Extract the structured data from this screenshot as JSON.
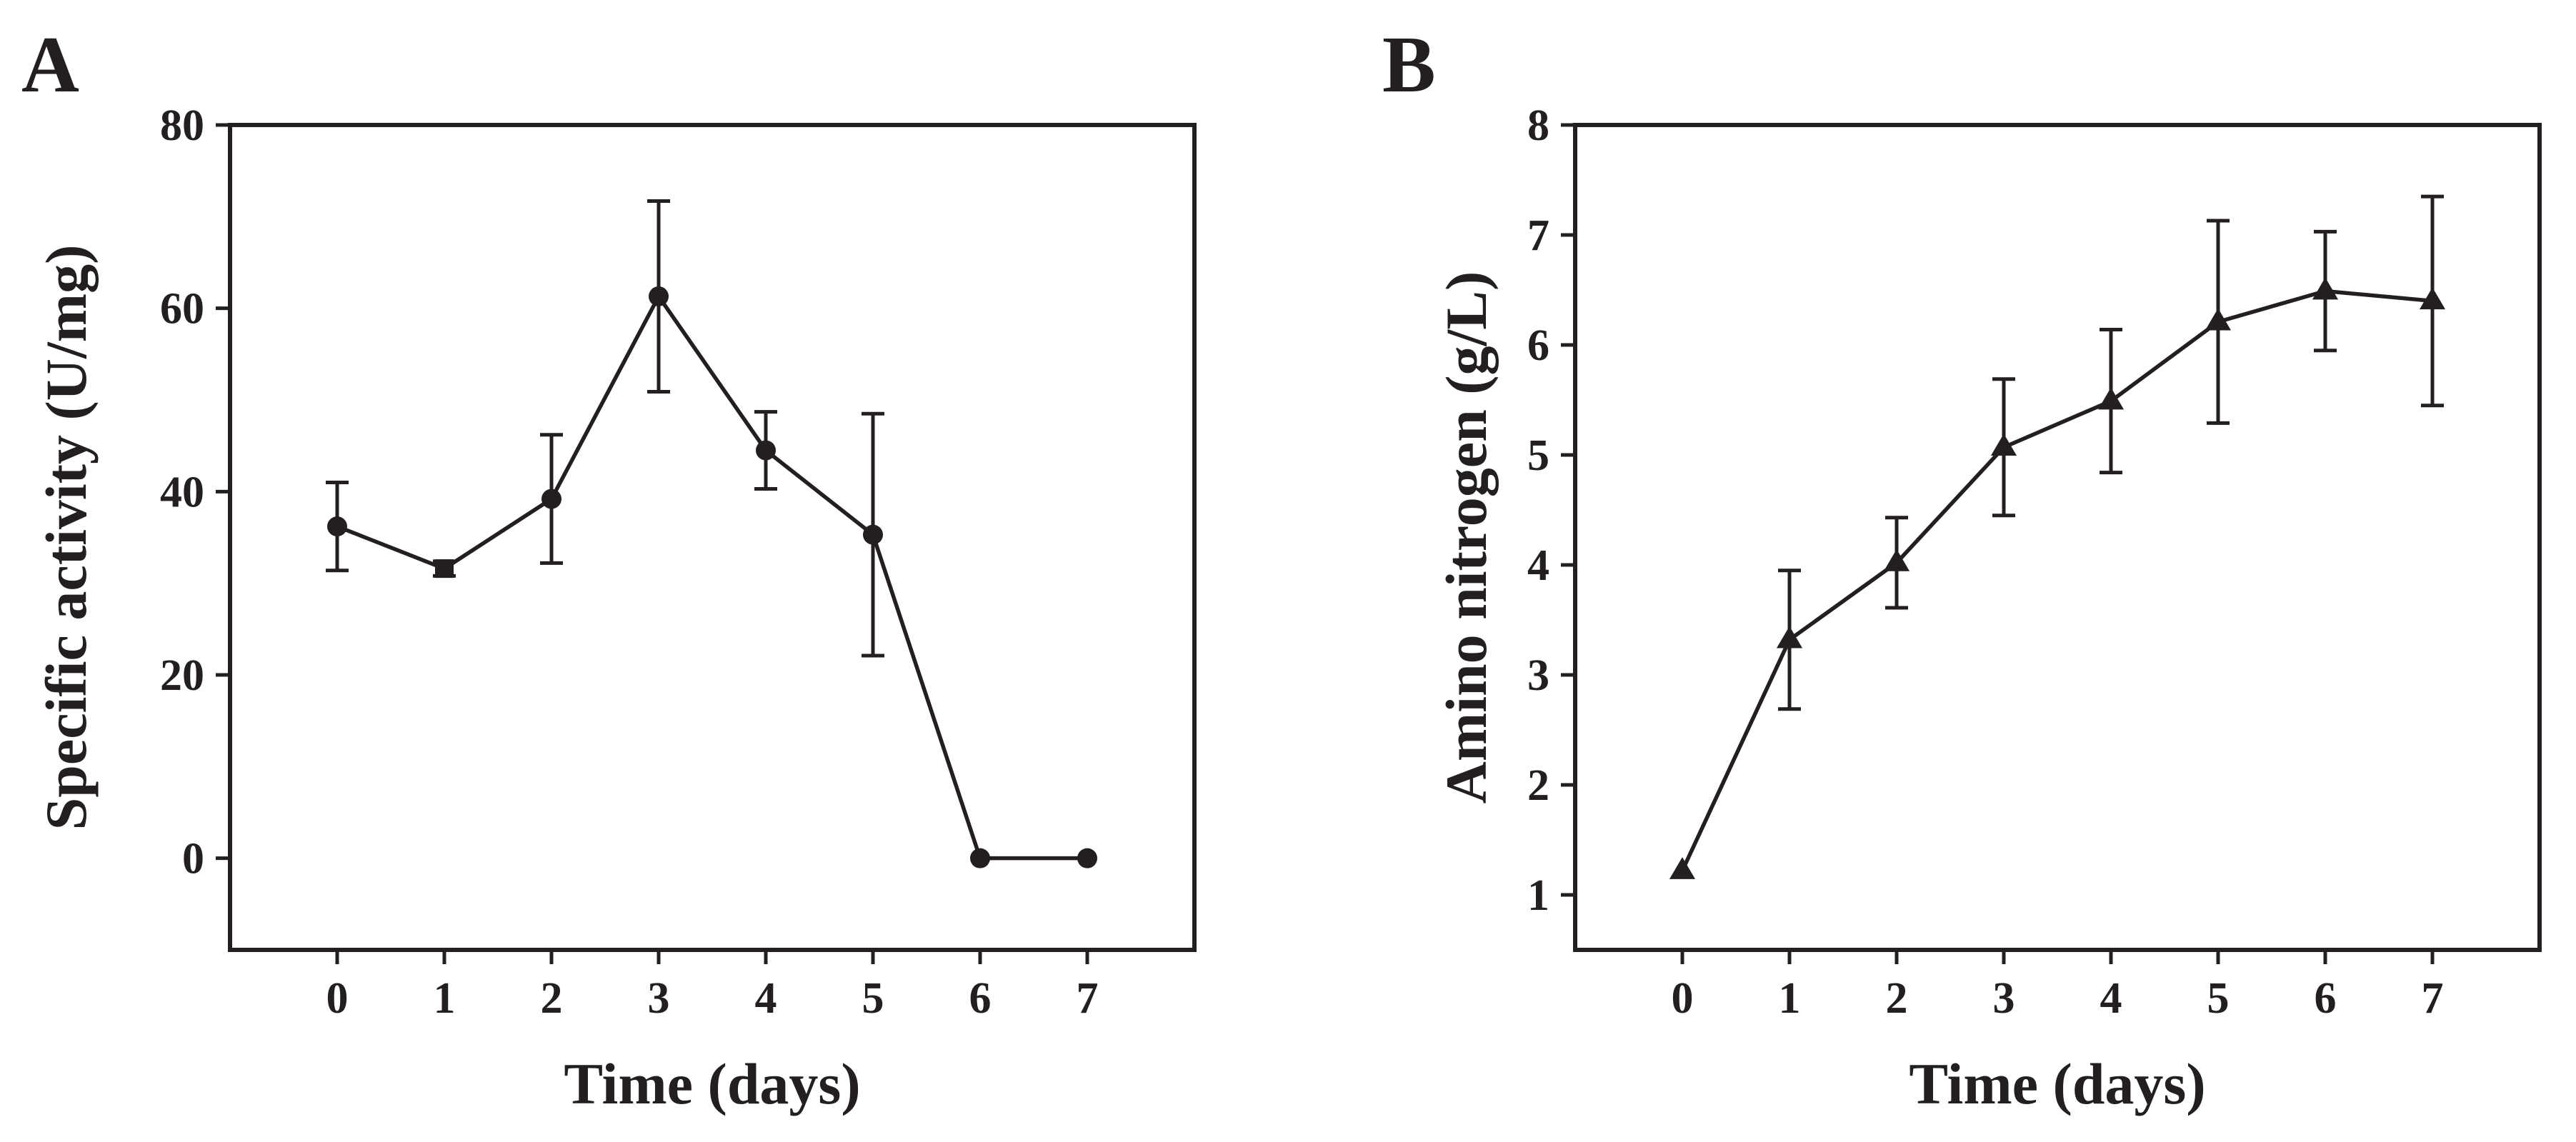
{
  "chart_data": [
    {
      "panel": "A",
      "type": "line",
      "xlabel": "Time  (days)",
      "ylabel": "Specific activity (U/mg)",
      "x": [
        0,
        1,
        2,
        3,
        4,
        5,
        6,
        7
      ],
      "xticks": [
        0,
        1,
        2,
        3,
        4,
        5,
        6,
        7
      ],
      "xlim": [
        -1,
        8
      ],
      "ylim": [
        -10,
        80
      ],
      "yticks": [
        0,
        20,
        40,
        60,
        80
      ],
      "series": [
        {
          "name": "Specific activity",
          "marker": "circle",
          "marker_by_point": [
            "circle",
            "square",
            "circle",
            "circle",
            "circle",
            "circle",
            "circle",
            "circle"
          ],
          "values": [
            36.2,
            31.6,
            39.2,
            61.3,
            44.5,
            35.3,
            0.0,
            0.0
          ],
          "error": [
            4.8,
            0.8,
            7.0,
            10.4,
            4.2,
            13.2,
            0.0,
            0.0
          ]
        }
      ],
      "grid": false,
      "colors": {
        "line": "#231f20",
        "marker": "#231f20"
      }
    },
    {
      "panel": "B",
      "type": "line",
      "xlabel": "Time (days)",
      "ylabel": "Amino nitrogen (g/L)",
      "x": [
        0,
        1,
        2,
        3,
        4,
        5,
        6,
        7
      ],
      "xticks": [
        0,
        1,
        2,
        3,
        4,
        5,
        6,
        7
      ],
      "xlim": [
        -1,
        8
      ],
      "ylim": [
        0.5,
        8
      ],
      "yticks": [
        1,
        2,
        3,
        4,
        5,
        6,
        7,
        8
      ],
      "series": [
        {
          "name": "Amino nitrogen",
          "marker": "triangle",
          "values": [
            1.22,
            3.32,
            4.02,
            5.07,
            5.49,
            6.21,
            6.49,
            6.4
          ],
          "error": [
            0.0,
            0.63,
            0.41,
            0.62,
            0.65,
            0.92,
            0.54,
            0.95
          ]
        }
      ],
      "grid": false,
      "colors": {
        "line": "#231f20",
        "marker": "#231f20"
      }
    }
  ]
}
